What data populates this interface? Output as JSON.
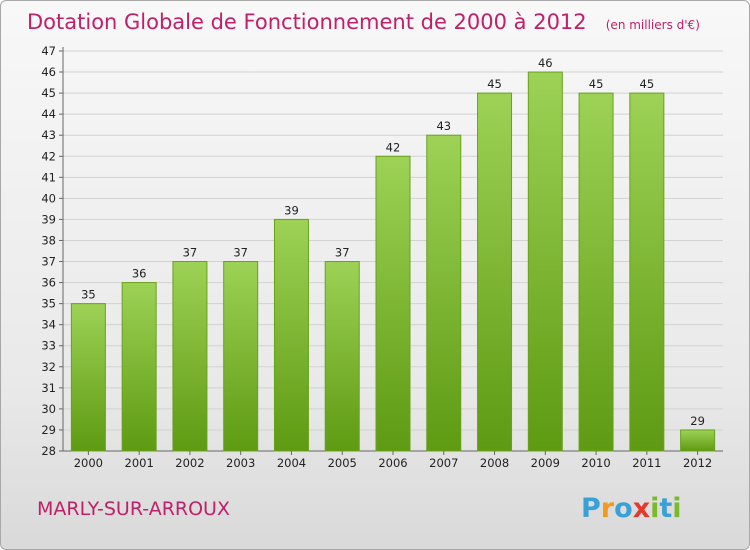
{
  "chart_data": {
    "type": "bar",
    "title": "Dotation Globale de Fonctionnement de 2000 à 2012",
    "unit": "(en milliers d'€)",
    "categories": [
      "2000",
      "2001",
      "2002",
      "2003",
      "2004",
      "2005",
      "2006",
      "2007",
      "2008",
      "2009",
      "2010",
      "2011",
      "2012"
    ],
    "values": [
      35,
      36,
      37,
      37,
      39,
      37,
      42,
      43,
      45,
      46,
      45,
      45,
      29
    ],
    "ylim": [
      28,
      47
    ],
    "yticks": [
      28,
      29,
      30,
      31,
      32,
      33,
      34,
      35,
      36,
      37,
      38,
      39,
      40,
      41,
      42,
      43,
      44,
      45,
      46,
      47
    ],
    "grid": true,
    "colors": {
      "bar_top": "#9dd256",
      "bar_bottom": "#5e9a12",
      "bar_edge": "#6aa11c"
    }
  },
  "commune": "MARLY-SUR-ARROUX",
  "logo": {
    "text": "Proxiti",
    "letters": [
      {
        "ch": "P",
        "color": "#3aa0d8"
      },
      {
        "ch": "r",
        "color": "#f29a1f"
      },
      {
        "ch": "o",
        "color": "#3aa0d8"
      },
      {
        "ch": "x",
        "color": "#e23b2e"
      },
      {
        "ch": "i",
        "color": "#7ab929"
      },
      {
        "ch": "t",
        "color": "#3aa0d8"
      },
      {
        "ch": "i",
        "color": "#7ab929"
      }
    ]
  }
}
